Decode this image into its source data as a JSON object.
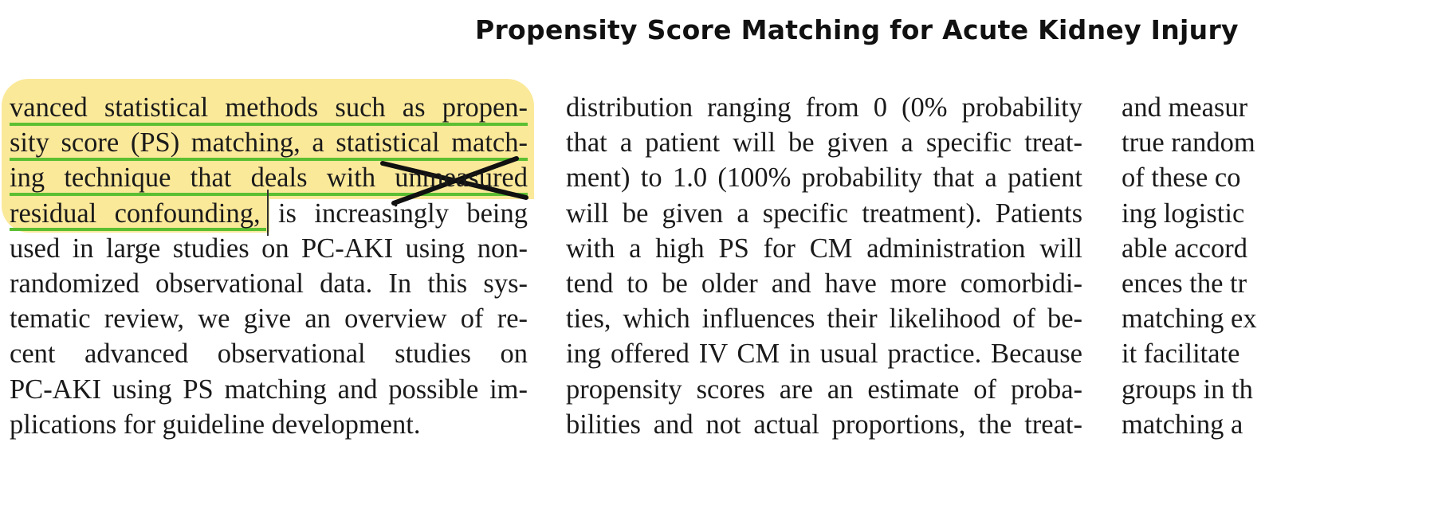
{
  "header": {
    "title": "Propensity Score Matching for Acute Kidney Injury"
  },
  "columns": {
    "col1": [
      "vanced statistical methods such as propen-",
      "sity score (PS) matching, a statistical match-",
      "ing technique that deals with unmeasured",
      "residual confounding, is increasingly being",
      "used in large studies on PC-AKI using non-",
      "randomized observational data. In this sys-",
      "tematic review, we give an overview of re-",
      "cent advanced observational studies on",
      "PC-AKI using PS matching and possible im-",
      "plications for guideline development."
    ],
    "col2": [
      "distribution ranging from 0 (0% probability",
      "that a patient will be given a specific treat-",
      "ment) to 1.0 (100% probability that a patient",
      "will be given a specific treatment). Patients",
      "with a high PS for CM administration will",
      "tend to be older and have more comorbidi-",
      "ties, which influences their likelihood of be-",
      "ing offered IV CM in usual practice. Because",
      "propensity scores are an estimate of proba-",
      "bilities and not actual proportions, the treat-"
    ],
    "col3": [
      "and measur",
      "true random",
      "of these co",
      "ing logistic",
      "able accord",
      "ences the tr",
      "matching ex",
      "it facilitate",
      "groups in th",
      "matching a"
    ]
  },
  "annotations": {
    "highlight_color": "#fbe99a",
    "underline_color": "#5cbf32",
    "strike_color": "#111111"
  }
}
